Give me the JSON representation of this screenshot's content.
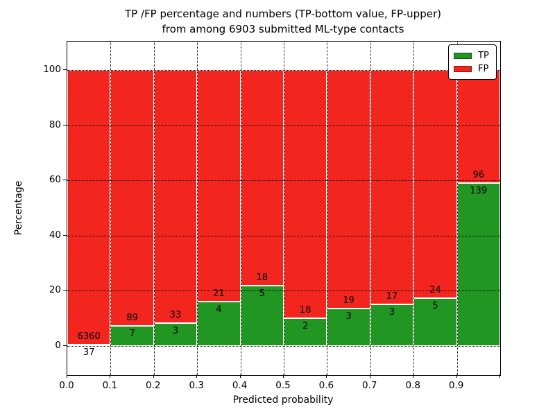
{
  "title": {
    "line1": "TP /FP percentage and numbers (TP-bottom value, FP-upper)",
    "line2": "from among 6903 submitted ML-type contacts"
  },
  "axes": {
    "xlabel": "Predicted probability",
    "ylabel": "Percentage",
    "xtick_labels": [
      "0.0",
      "0.1",
      "0.2",
      "0.3",
      "0.4",
      "0.5",
      "0.6",
      "0.7",
      "0.8",
      "0.9"
    ],
    "ytick_labels": [
      "0",
      "20",
      "40",
      "60",
      "80",
      "100"
    ],
    "ytick_values": [
      0,
      20,
      40,
      60,
      80,
      100
    ]
  },
  "legend": {
    "items": [
      {
        "label": "TP",
        "color": "#229622"
      },
      {
        "label": "FP",
        "color": "#f2261e"
      }
    ]
  },
  "colors": {
    "tp": "#229622",
    "fp": "#f2261e",
    "bar_edge": "#ffffff",
    "grid": "#000000"
  },
  "chart_data": {
    "type": "bar",
    "stacked": true,
    "normalized_to": 100,
    "title": "TP /FP percentage and numbers (TP-bottom value, FP-upper) from among 6903 submitted ML-type contacts",
    "xlabel": "Predicted probability",
    "ylabel": "Percentage",
    "x_bin_edges": [
      0.0,
      0.1,
      0.2,
      0.3,
      0.4,
      0.5,
      0.6,
      0.7,
      0.8,
      0.9,
      1.0
    ],
    "categories": [
      "0.0-0.1",
      "0.1-0.2",
      "0.2-0.3",
      "0.3-0.4",
      "0.4-0.5",
      "0.5-0.6",
      "0.6-0.7",
      "0.7-0.8",
      "0.8-0.9",
      "0.9-1.0"
    ],
    "series": [
      {
        "name": "TP",
        "position": "bottom",
        "counts": [
          37,
          7,
          3,
          4,
          5,
          2,
          3,
          3,
          5,
          139
        ]
      },
      {
        "name": "FP",
        "position": "top",
        "counts": [
          6360,
          89,
          33,
          21,
          18,
          18,
          19,
          17,
          24,
          96
        ]
      }
    ],
    "tp_percent": [
      0.58,
      7.29,
      8.33,
      16.0,
      21.74,
      10.0,
      13.64,
      15.0,
      17.24,
      59.15
    ],
    "total_contacts": 6903,
    "ylim": [
      -10.5,
      110.5
    ],
    "xlim": [
      0.0,
      1.0
    ],
    "grid": true,
    "grid_style": "dotted",
    "legend_position": "upper right"
  }
}
